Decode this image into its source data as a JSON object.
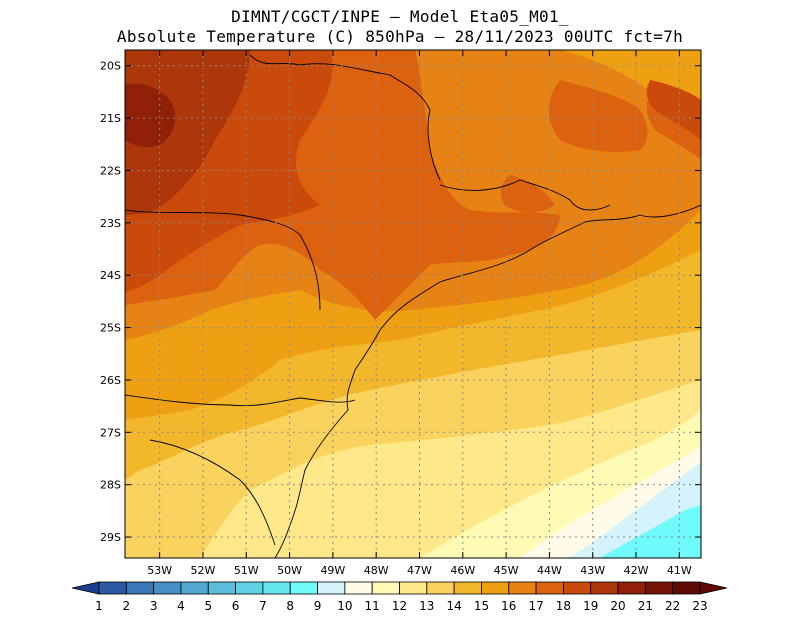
{
  "title": {
    "line1": "DIMNT/CGCT/INPE –  Model Eta05_M01_",
    "line2": "Absolute Temperature (C) 850hPa –  28/11/2023 00UTC fct=7h"
  },
  "axes": {
    "lat_labels": [
      "20S",
      "21S",
      "22S",
      "23S",
      "24S",
      "25S",
      "26S",
      "27S",
      "28S",
      "29S"
    ],
    "lon_labels": [
      "53W",
      "52W",
      "51W",
      "50W",
      "49W",
      "48W",
      "47W",
      "46W",
      "45W",
      "44W",
      "43W",
      "42W",
      "41W"
    ],
    "lon_range": [
      -53.8,
      -40.5
    ],
    "lat_range": [
      -29.4,
      -19.7
    ],
    "grid": true
  },
  "colorbar": {
    "labels": [
      "1",
      "2",
      "3",
      "4",
      "5",
      "6",
      "7",
      "8",
      "9",
      "10",
      "11",
      "12",
      "13",
      "14",
      "15",
      "16",
      "17",
      "18",
      "19",
      "20",
      "21",
      "22",
      "23"
    ],
    "colors": [
      "#1f3d8f",
      "#2b5aa3",
      "#3a78b8",
      "#4690c6",
      "#52a6d2",
      "#5dbedb",
      "#60d2e6",
      "#66e6ef",
      "#6ffafc",
      "#d4f3fb",
      "#fffbe8",
      "#fffbb5",
      "#ffe88a",
      "#f9d35e",
      "#f2b72b",
      "#eea012",
      "#e78314",
      "#dc6210",
      "#c94a0a",
      "#ad360a",
      "#902108",
      "#731406",
      "#5e0b06"
    ]
  },
  "map_colors": {
    "c11": "#fffbe8",
    "c12": "#fffbb5",
    "c13": "#ffe88a",
    "c14": "#f9d35e",
    "c15": "#f2b72b",
    "c16": "#eea012",
    "c17": "#e78314",
    "c18": "#dc6210",
    "c19": "#c94a0a",
    "c20": "#ad360a",
    "c21": "#902108",
    "c9": "#6ffafc",
    "c10": "#d4f3fb"
  }
}
